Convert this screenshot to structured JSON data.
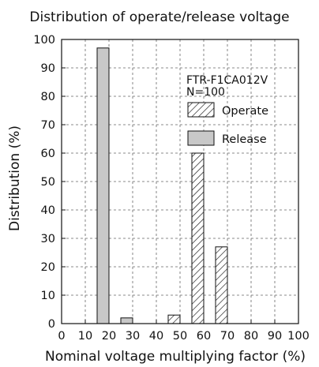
{
  "chart_data": {
    "type": "bar",
    "title": "Distribution of operate/release voltage",
    "xlabel": "Nominal voltage multiplying factor (%)",
    "ylabel": "Distribution (%)",
    "xlim": [
      0,
      100
    ],
    "ylim": [
      0,
      100
    ],
    "x_ticks": [
      "0",
      "10",
      "20",
      "30",
      "40",
      "50",
      "60",
      "70",
      "80",
      "90",
      "100"
    ],
    "y_ticks": [
      "0",
      "10",
      "20",
      "30",
      "40",
      "50",
      "60",
      "70",
      "80",
      "90",
      "100"
    ],
    "grid": "dashed",
    "bin_width": 5,
    "annotations": [
      "FTR-F1CA012V",
      "N=100"
    ],
    "legend_position": "top-right",
    "series": [
      {
        "name": "Operate",
        "pattern": "hatched",
        "bins": [
          {
            "x0": 45,
            "x1": 50,
            "value": 3
          },
          {
            "x0": 55,
            "x1": 60,
            "value": 60
          },
          {
            "x0": 65,
            "x1": 70,
            "value": 27
          }
        ]
      },
      {
        "name": "Release",
        "color": "#c8c8c8",
        "bins": [
          {
            "x0": 15,
            "x1": 20,
            "value": 97
          },
          {
            "x0": 25,
            "x1": 30,
            "value": 2
          }
        ]
      }
    ]
  }
}
